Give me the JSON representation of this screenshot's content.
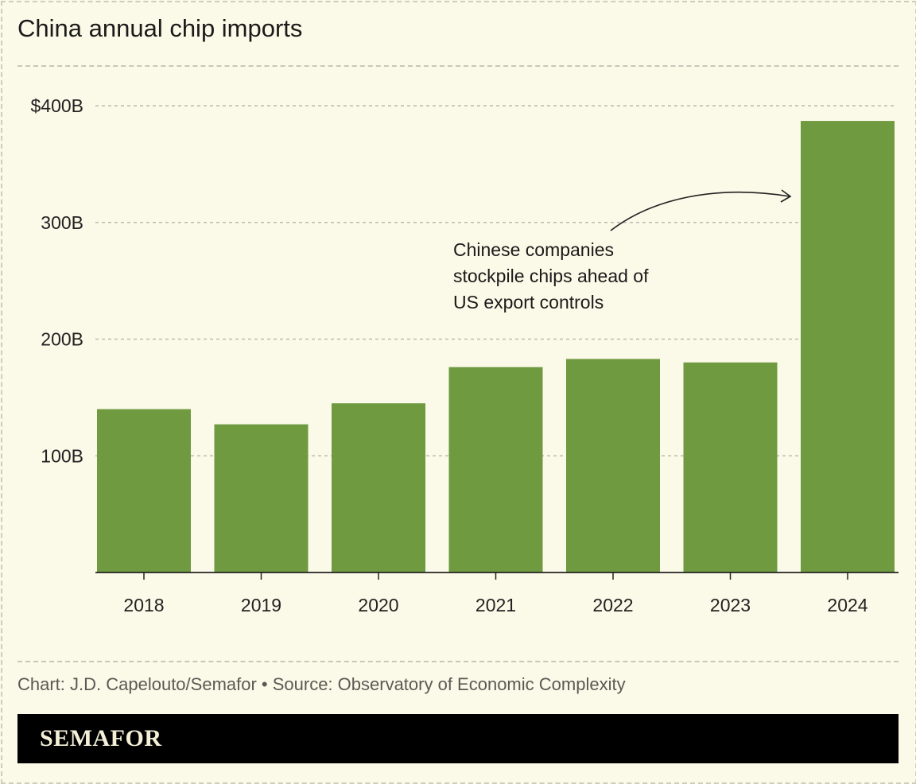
{
  "title": "China annual chip imports",
  "source": "Chart: J.D. Capelouto/Semafor • Source: Observatory of Economic Complexity",
  "brand": "SEMAFOR",
  "colors": {
    "bar": "#6f9a40",
    "background": "#fbf9e7"
  },
  "chart_data": {
    "type": "bar",
    "title": "China annual chip imports",
    "categories": [
      "2018",
      "2019",
      "2020",
      "2021",
      "2022",
      "2023",
      "2024"
    ],
    "values": [
      140,
      127,
      145,
      176,
      183,
      180,
      387
    ],
    "unit": "billion USD",
    "ylim": [
      0,
      400
    ],
    "yticks": [
      100,
      200,
      300,
      400
    ],
    "ytick_labels": [
      "100B",
      "200B",
      "300B",
      "$400B"
    ],
    "grid": true,
    "annotation": {
      "lines": [
        "Chinese companies",
        "stockpile chips ahead of",
        "US export controls"
      ],
      "target": "2024"
    }
  }
}
